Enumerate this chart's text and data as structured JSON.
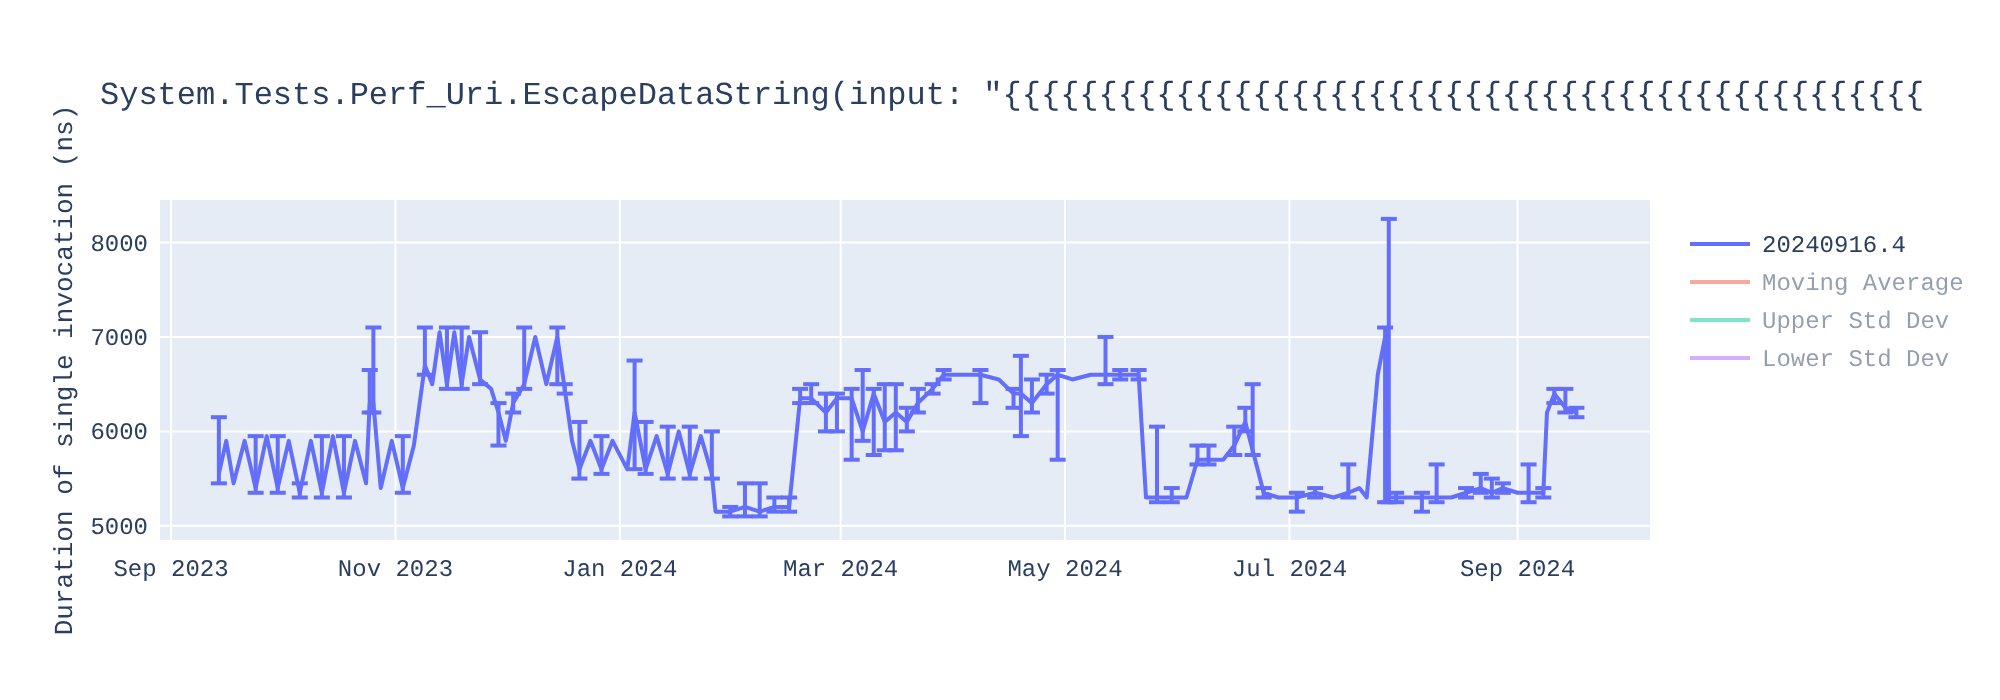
{
  "chart_data": {
    "type": "line",
    "title": "System.Tests.Perf_Uri.EscapeDataString(input: \"{{{{{{{{{{{{{{{{{{{{{{{{{{{{{{{{{{{{{{{{{{{{{{{{",
    "ylabel": "Duration of single invocation (ns)",
    "x": [
      "2023-09-14",
      "2023-09-16",
      "2023-09-18",
      "2023-09-21",
      "2023-09-24",
      "2023-09-27",
      "2023-09-30",
      "2023-10-03",
      "2023-10-06",
      "2023-10-09",
      "2023-10-12",
      "2023-10-15",
      "2023-10-18",
      "2023-10-21",
      "2023-10-24",
      "2023-10-25",
      "2023-10-26",
      "2023-10-28",
      "2023-10-31",
      "2023-11-03",
      "2023-11-06",
      "2023-11-09",
      "2023-11-11",
      "2023-11-13",
      "2023-11-15",
      "2023-11-17",
      "2023-11-19",
      "2023-11-21",
      "2023-11-24",
      "2023-11-27",
      "2023-11-29",
      "2023-12-01",
      "2023-12-03",
      "2023-12-06",
      "2023-12-09",
      "2023-12-12",
      "2023-12-15",
      "2023-12-17",
      "2023-12-19",
      "2023-12-21",
      "2023-12-24",
      "2023-12-27",
      "2023-12-30",
      "2024-01-03",
      "2024-01-05",
      "2024-01-08",
      "2024-01-11",
      "2024-01-14",
      "2024-01-17",
      "2024-01-20",
      "2024-01-23",
      "2024-01-26",
      "2024-01-27",
      "2024-01-31",
      "2024-02-04",
      "2024-02-08",
      "2024-02-12",
      "2024-02-16",
      "2024-02-19",
      "2024-02-22",
      "2024-02-26",
      "2024-02-29",
      "2024-03-04",
      "2024-03-07",
      "2024-03-10",
      "2024-03-13",
      "2024-03-16",
      "2024-03-19",
      "2024-03-22",
      "2024-03-26",
      "2024-03-29",
      "2024-04-03",
      "2024-04-08",
      "2024-04-13",
      "2024-04-17",
      "2024-04-19",
      "2024-04-22",
      "2024-04-26",
      "2024-04-29",
      "2024-05-03",
      "2024-05-08",
      "2024-05-12",
      "2024-05-16",
      "2024-05-21",
      "2024-05-23",
      "2024-05-26",
      "2024-05-30",
      "2024-06-03",
      "2024-06-06",
      "2024-06-09",
      "2024-06-13",
      "2024-06-16",
      "2024-06-19",
      "2024-06-21",
      "2024-06-24",
      "2024-06-28",
      "2024-07-03",
      "2024-07-08",
      "2024-07-13",
      "2024-07-17",
      "2024-07-20",
      "2024-07-22",
      "2024-07-25",
      "2024-07-27",
      "2024-07-28",
      "2024-07-30",
      "2024-08-03",
      "2024-08-06",
      "2024-08-10",
      "2024-08-14",
      "2024-08-18",
      "2024-08-22",
      "2024-08-25",
      "2024-08-28",
      "2024-09-01",
      "2024-09-04",
      "2024-09-08",
      "2024-09-09",
      "2024-09-11",
      "2024-09-14",
      "2024-09-17"
    ],
    "series": [
      {
        "name": "20240916.4",
        "color": "#636efa",
        "values": [
          5550,
          5900,
          5450,
          5900,
          5400,
          5950,
          5400,
          5900,
          5350,
          5900,
          5350,
          5950,
          5350,
          5900,
          5450,
          6300,
          6300,
          5400,
          5900,
          5400,
          5850,
          6700,
          6500,
          7050,
          6500,
          7050,
          6500,
          7000,
          6550,
          6450,
          6200,
          5900,
          6300,
          6500,
          7000,
          6500,
          7000,
          6450,
          5900,
          5600,
          5900,
          5600,
          5900,
          5600,
          6200,
          5600,
          5950,
          5550,
          6000,
          5550,
          5950,
          5550,
          5150,
          5150,
          5200,
          5150,
          5200,
          5200,
          6350,
          6350,
          6200,
          6350,
          6350,
          6000,
          6400,
          6100,
          6200,
          6100,
          6300,
          6450,
          6600,
          6600,
          6600,
          6550,
          6400,
          6400,
          6300,
          6500,
          6600,
          6550,
          6600,
          6600,
          6600,
          6600,
          5300,
          5300,
          5300,
          5300,
          5700,
          5700,
          5700,
          5850,
          6100,
          5800,
          5350,
          5300,
          5300,
          5350,
          5300,
          5350,
          5400,
          5300,
          6600,
          7000,
          5300,
          5300,
          5300,
          5300,
          5300,
          5300,
          5350,
          5400,
          5350,
          5400,
          5350,
          5350,
          5350,
          6200,
          6400,
          6250,
          6200
        ],
        "errors": [
          [
            5450,
            6150
          ],
          null,
          null,
          null,
          [
            5350,
            5950
          ],
          null,
          [
            5350,
            5950
          ],
          null,
          [
            5300,
            5450
          ],
          null,
          [
            5300,
            5950
          ],
          null,
          [
            5300,
            5950
          ],
          null,
          null,
          [
            6200,
            6650
          ],
          [
            6200,
            7100
          ],
          null,
          null,
          [
            5350,
            5950
          ],
          null,
          [
            6600,
            7100
          ],
          null,
          null,
          [
            6450,
            7100
          ],
          null,
          [
            6450,
            7100
          ],
          null,
          [
            6500,
            7050
          ],
          null,
          [
            5850,
            6300
          ],
          null,
          [
            6200,
            6400
          ],
          [
            6450,
            7100
          ],
          null,
          null,
          [
            6500,
            7100
          ],
          [
            6400,
            6500
          ],
          null,
          [
            5500,
            6100
          ],
          null,
          [
            5550,
            5950
          ],
          null,
          null,
          [
            5600,
            6750
          ],
          [
            5550,
            6100
          ],
          null,
          [
            5500,
            6050
          ],
          null,
          [
            5500,
            6050
          ],
          null,
          [
            5500,
            6000
          ],
          null,
          [
            5100,
            5200
          ],
          [
            5100,
            5450
          ],
          [
            5100,
            5450
          ],
          [
            5150,
            5300
          ],
          [
            5150,
            5300
          ],
          [
            6300,
            6450
          ],
          [
            6300,
            6500
          ],
          [
            6000,
            6400
          ],
          [
            6000,
            6400
          ],
          [
            5700,
            6450
          ],
          [
            5900,
            6650
          ],
          [
            5750,
            6450
          ],
          [
            5800,
            6500
          ],
          [
            5800,
            6500
          ],
          [
            6000,
            6250
          ],
          [
            6200,
            6450
          ],
          [
            6400,
            6500
          ],
          [
            6550,
            6650
          ],
          null,
          [
            6300,
            6650
          ],
          null,
          [
            6250,
            6450
          ],
          [
            5950,
            6800
          ],
          [
            6200,
            6550
          ],
          [
            6400,
            6600
          ],
          [
            5700,
            6650
          ],
          null,
          null,
          [
            6500,
            7000
          ],
          [
            6550,
            6650
          ],
          [
            6550,
            6650
          ],
          null,
          [
            5250,
            6050
          ],
          [
            5250,
            5400
          ],
          null,
          [
            5650,
            5850
          ],
          [
            5650,
            5850
          ],
          null,
          [
            5750,
            6050
          ],
          [
            6000,
            6250
          ],
          [
            5750,
            6500
          ],
          [
            5300,
            5400
          ],
          null,
          [
            5150,
            5350
          ],
          [
            5300,
            5400
          ],
          null,
          [
            5300,
            5650
          ],
          null,
          null,
          null,
          [
            5250,
            7100
          ],
          [
            5250,
            8250
          ],
          [
            5250,
            5350
          ],
          null,
          [
            5150,
            5350
          ],
          [
            5250,
            5650
          ],
          null,
          [
            5300,
            5400
          ],
          [
            5350,
            5550
          ],
          [
            5300,
            5500
          ],
          [
            5350,
            5450
          ],
          null,
          [
            5250,
            5650
          ],
          [
            5300,
            5400
          ],
          null,
          [
            6300,
            6450
          ],
          [
            6200,
            6450
          ],
          [
            6150,
            6250
          ]
        ]
      },
      {
        "name": "Moving Average",
        "color": "#ef553b",
        "values": [
          null,
          null,
          null,
          null,
          null,
          null,
          null,
          null,
          null,
          null,
          null,
          null,
          null,
          null,
          null,
          null,
          null,
          null,
          null,
          null,
          null,
          null,
          null,
          null,
          null,
          null,
          null,
          null,
          null,
          null,
          null,
          null,
          null,
          null,
          null,
          null,
          null,
          null,
          null,
          null,
          null,
          null,
          null,
          null,
          null,
          null,
          null,
          null,
          null,
          null,
          null,
          null,
          null,
          null,
          null,
          null,
          null,
          null,
          null,
          null,
          null,
          null,
          null,
          null,
          null,
          null,
          null,
          null,
          null,
          null,
          null,
          null,
          null,
          null,
          null,
          null,
          null,
          null,
          null,
          null,
          null,
          null,
          null,
          null,
          null,
          null,
          null,
          null,
          null,
          null,
          null,
          null,
          null,
          null,
          null,
          null,
          null,
          null,
          null,
          null,
          null,
          null,
          null,
          null,
          null,
          null,
          null,
          null,
          null,
          null,
          null,
          null,
          null,
          null,
          null,
          null,
          null,
          null,
          null,
          null,
          null
        ]
      },
      {
        "name": "Upper Std Dev",
        "color": "#00cc96",
        "values": [
          null,
          null,
          null,
          null,
          null,
          null,
          null,
          null,
          null,
          null,
          null,
          null,
          null,
          null,
          null,
          null,
          null,
          null,
          null,
          null,
          null,
          null,
          null,
          null,
          null,
          null,
          null,
          null,
          null,
          null,
          null,
          null,
          null,
          null,
          null,
          null,
          null,
          null,
          null,
          null,
          null,
          null,
          null,
          null,
          null,
          null,
          null,
          null,
          null,
          null,
          null,
          null,
          null,
          null,
          null,
          null,
          null,
          null,
          null,
          null,
          null,
          null,
          null,
          null,
          null,
          null,
          null,
          null,
          null,
          null,
          null,
          null,
          null,
          null,
          null,
          null,
          null,
          null,
          null,
          null,
          null,
          null,
          null,
          null,
          null,
          null,
          null,
          null,
          null,
          null,
          null,
          null,
          null,
          null,
          null,
          null,
          null,
          null,
          null,
          null,
          null,
          null,
          null,
          null,
          null,
          null,
          null,
          null,
          null,
          null,
          null,
          null,
          null,
          null,
          null,
          null,
          null,
          null,
          null,
          null,
          null
        ]
      },
      {
        "name": "Lower Std Dev",
        "color": "#ab63fa",
        "values": [
          null,
          null,
          null,
          null,
          null,
          null,
          null,
          null,
          null,
          null,
          null,
          null,
          null,
          null,
          null,
          null,
          null,
          null,
          null,
          null,
          null,
          null,
          null,
          null,
          null,
          null,
          null,
          null,
          null,
          null,
          null,
          null,
          null,
          null,
          null,
          null,
          null,
          null,
          null,
          null,
          null,
          null,
          null,
          null,
          null,
          null,
          null,
          null,
          null,
          null,
          null,
          null,
          null,
          null,
          null,
          null,
          null,
          null,
          null,
          null,
          null,
          null,
          null,
          null,
          null,
          null,
          null,
          null,
          null,
          null,
          null,
          null,
          null,
          null,
          null,
          null,
          null,
          null,
          null,
          null,
          null,
          null,
          null,
          null,
          null,
          null,
          null,
          null,
          null,
          null,
          null,
          null,
          null,
          null,
          null,
          null,
          null,
          null,
          null,
          null,
          null,
          null,
          null,
          null,
          null,
          null,
          null,
          null,
          null,
          null,
          null,
          null,
          null,
          null,
          null,
          null,
          null,
          null,
          null,
          null,
          null
        ]
      }
    ],
    "xlim": [
      "2023-08-29",
      "2024-10-07"
    ],
    "xticks": [
      {
        "value": "2023-09-01",
        "label": "Sep 2023"
      },
      {
        "value": "2023-11-01",
        "label": "Nov 2023"
      },
      {
        "value": "2024-01-01",
        "label": "Jan 2024"
      },
      {
        "value": "2024-03-01",
        "label": "Mar 2024"
      },
      {
        "value": "2024-05-01",
        "label": "May 2024"
      },
      {
        "value": "2024-07-01",
        "label": "Jul 2024"
      },
      {
        "value": "2024-09-01",
        "label": "Sep 2024"
      }
    ],
    "ylim": [
      4850,
      8450
    ],
    "yticks": [
      5000,
      6000,
      7000,
      8000
    ],
    "grid": true,
    "legend": "top right"
  }
}
